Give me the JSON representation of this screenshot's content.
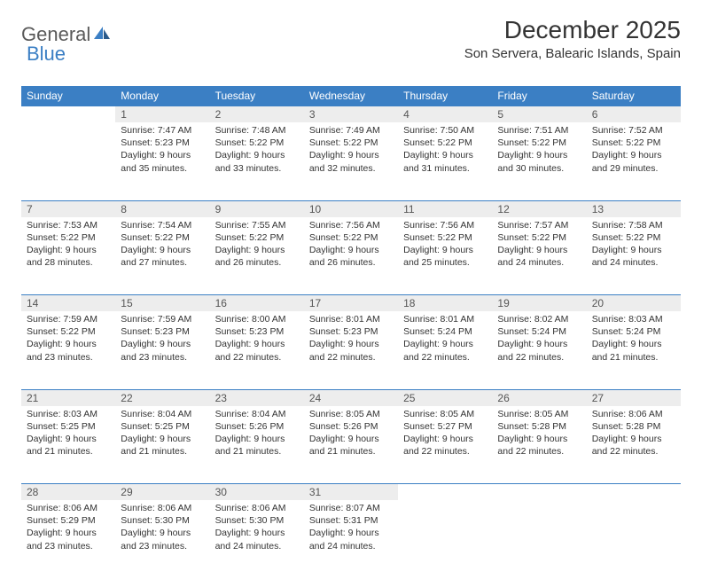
{
  "logo": {
    "text1": "General",
    "text2": "Blue"
  },
  "title": "December 2025",
  "location": "Son Servera, Balearic Islands, Spain",
  "colors": {
    "header_bg": "#3b7fc4",
    "header_text": "#ffffff",
    "daynum_bg": "#ededed",
    "daynum_border": "#3b7fc4",
    "body_text": "#333333",
    "logo_gray": "#5a5a5a",
    "logo_blue": "#3b7fc4",
    "page_bg": "#ffffff"
  },
  "weekdays": [
    "Sunday",
    "Monday",
    "Tuesday",
    "Wednesday",
    "Thursday",
    "Friday",
    "Saturday"
  ],
  "weeks": [
    [
      null,
      {
        "n": "1",
        "sr": "7:47 AM",
        "ss": "5:23 PM",
        "dl": "9 hours and 35 minutes."
      },
      {
        "n": "2",
        "sr": "7:48 AM",
        "ss": "5:22 PM",
        "dl": "9 hours and 33 minutes."
      },
      {
        "n": "3",
        "sr": "7:49 AM",
        "ss": "5:22 PM",
        "dl": "9 hours and 32 minutes."
      },
      {
        "n": "4",
        "sr": "7:50 AM",
        "ss": "5:22 PM",
        "dl": "9 hours and 31 minutes."
      },
      {
        "n": "5",
        "sr": "7:51 AM",
        "ss": "5:22 PM",
        "dl": "9 hours and 30 minutes."
      },
      {
        "n": "6",
        "sr": "7:52 AM",
        "ss": "5:22 PM",
        "dl": "9 hours and 29 minutes."
      }
    ],
    [
      {
        "n": "7",
        "sr": "7:53 AM",
        "ss": "5:22 PM",
        "dl": "9 hours and 28 minutes."
      },
      {
        "n": "8",
        "sr": "7:54 AM",
        "ss": "5:22 PM",
        "dl": "9 hours and 27 minutes."
      },
      {
        "n": "9",
        "sr": "7:55 AM",
        "ss": "5:22 PM",
        "dl": "9 hours and 26 minutes."
      },
      {
        "n": "10",
        "sr": "7:56 AM",
        "ss": "5:22 PM",
        "dl": "9 hours and 26 minutes."
      },
      {
        "n": "11",
        "sr": "7:56 AM",
        "ss": "5:22 PM",
        "dl": "9 hours and 25 minutes."
      },
      {
        "n": "12",
        "sr": "7:57 AM",
        "ss": "5:22 PM",
        "dl": "9 hours and 24 minutes."
      },
      {
        "n": "13",
        "sr": "7:58 AM",
        "ss": "5:22 PM",
        "dl": "9 hours and 24 minutes."
      }
    ],
    [
      {
        "n": "14",
        "sr": "7:59 AM",
        "ss": "5:22 PM",
        "dl": "9 hours and 23 minutes."
      },
      {
        "n": "15",
        "sr": "7:59 AM",
        "ss": "5:23 PM",
        "dl": "9 hours and 23 minutes."
      },
      {
        "n": "16",
        "sr": "8:00 AM",
        "ss": "5:23 PM",
        "dl": "9 hours and 22 minutes."
      },
      {
        "n": "17",
        "sr": "8:01 AM",
        "ss": "5:23 PM",
        "dl": "9 hours and 22 minutes."
      },
      {
        "n": "18",
        "sr": "8:01 AM",
        "ss": "5:24 PM",
        "dl": "9 hours and 22 minutes."
      },
      {
        "n": "19",
        "sr": "8:02 AM",
        "ss": "5:24 PM",
        "dl": "9 hours and 22 minutes."
      },
      {
        "n": "20",
        "sr": "8:03 AM",
        "ss": "5:24 PM",
        "dl": "9 hours and 21 minutes."
      }
    ],
    [
      {
        "n": "21",
        "sr": "8:03 AM",
        "ss": "5:25 PM",
        "dl": "9 hours and 21 minutes."
      },
      {
        "n": "22",
        "sr": "8:04 AM",
        "ss": "5:25 PM",
        "dl": "9 hours and 21 minutes."
      },
      {
        "n": "23",
        "sr": "8:04 AM",
        "ss": "5:26 PM",
        "dl": "9 hours and 21 minutes."
      },
      {
        "n": "24",
        "sr": "8:05 AM",
        "ss": "5:26 PM",
        "dl": "9 hours and 21 minutes."
      },
      {
        "n": "25",
        "sr": "8:05 AM",
        "ss": "5:27 PM",
        "dl": "9 hours and 22 minutes."
      },
      {
        "n": "26",
        "sr": "8:05 AM",
        "ss": "5:28 PM",
        "dl": "9 hours and 22 minutes."
      },
      {
        "n": "27",
        "sr": "8:06 AM",
        "ss": "5:28 PM",
        "dl": "9 hours and 22 minutes."
      }
    ],
    [
      {
        "n": "28",
        "sr": "8:06 AM",
        "ss": "5:29 PM",
        "dl": "9 hours and 23 minutes."
      },
      {
        "n": "29",
        "sr": "8:06 AM",
        "ss": "5:30 PM",
        "dl": "9 hours and 23 minutes."
      },
      {
        "n": "30",
        "sr": "8:06 AM",
        "ss": "5:30 PM",
        "dl": "9 hours and 24 minutes."
      },
      {
        "n": "31",
        "sr": "8:07 AM",
        "ss": "5:31 PM",
        "dl": "9 hours and 24 minutes."
      },
      null,
      null,
      null
    ]
  ],
  "labels": {
    "sunrise": "Sunrise:",
    "sunset": "Sunset:",
    "daylight": "Daylight:"
  }
}
